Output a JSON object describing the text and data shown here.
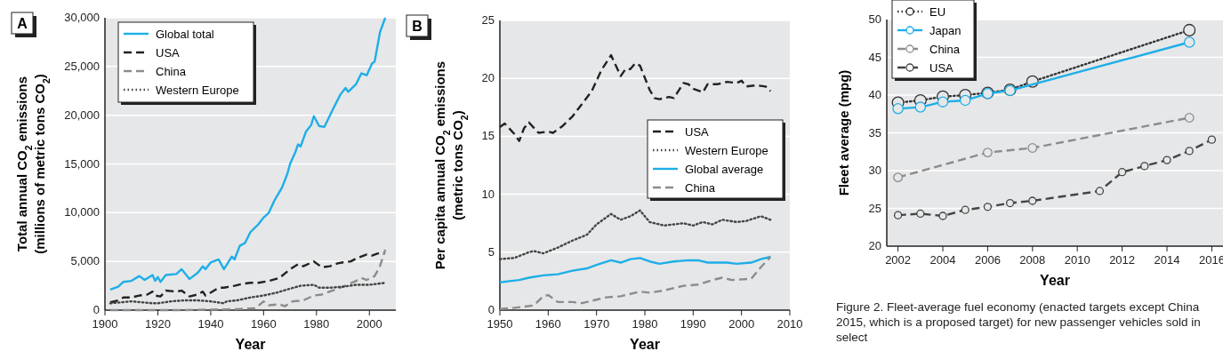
{
  "chart_data": [
    {
      "type": "line",
      "title": "A",
      "xlabel": "Year",
      "ylabel": "Total annual CO$_{2}$ emissions (millions of metric tons CO$_{2}$)",
      "xlim": [
        1900,
        2010
      ],
      "xticks": [
        1900,
        1920,
        1940,
        1960,
        1980,
        2000
      ],
      "ylim": [
        0,
        30000
      ],
      "yticks": [
        0,
        {
          "value": 5000,
          "label": "5,000"
        },
        {
          "value": 10000,
          "label": "10,000"
        },
        {
          "value": 15000,
          "label": "15,000"
        },
        {
          "value": 20000,
          "label": "20,000"
        },
        {
          "value": 25000,
          "label": "25,000"
        },
        {
          "value": 30000,
          "label": "30,000"
        }
      ],
      "grid": "y",
      "legend": "top left",
      "series": [
        {
          "name": "Global total",
          "color": "#1eaee8",
          "line_style": "solid",
          "x": [
            1902,
            1905,
            1907,
            1910,
            1913,
            1915,
            1918,
            1919,
            1920,
            1921,
            1923,
            1927,
            1929,
            1932,
            1935,
            1937,
            1938,
            1940,
            1943,
            1945,
            1948,
            1949,
            1951,
            1953,
            1955,
            1958,
            1960,
            1962,
            1964,
            1967,
            1969,
            1970,
            1972,
            1973,
            1974,
            1976,
            1978,
            1979,
            1981,
            1983,
            1986,
            1989,
            1991,
            1992,
            1995,
            1997,
            1999,
            2001,
            2002,
            2004,
            2006
          ],
          "values": [
            2100,
            2400,
            2900,
            3000,
            3500,
            3100,
            3600,
            3000,
            3400,
            2900,
            3600,
            3700,
            4200,
            3200,
            3800,
            4500,
            4200,
            4900,
            5200,
            4200,
            5500,
            5200,
            6600,
            6900,
            8000,
            8800,
            9500,
            10000,
            11200,
            12600,
            14000,
            15000,
            16200,
            17000,
            16800,
            18300,
            19000,
            19900,
            18900,
            18800,
            20500,
            22100,
            22800,
            22400,
            23200,
            24300,
            24100,
            25300,
            25500,
            28500,
            30000
          ]
        },
        {
          "name": "USA",
          "color": "#222222",
          "line_style": "dashed",
          "x": [
            1902,
            1905,
            1907,
            1910,
            1913,
            1916,
            1918,
            1919,
            1921,
            1923,
            1927,
            1929,
            1932,
            1935,
            1937,
            1938,
            1940,
            1943,
            1945,
            1949,
            1952,
            1955,
            1958,
            1962,
            1966,
            1970,
            1973,
            1975,
            1979,
            1982,
            1985,
            1988,
            1990,
            1993,
            1995,
            1997,
            1999,
            2001,
            2003,
            2006
          ],
          "values": [
            800,
            1000,
            1300,
            1300,
            1500,
            1600,
            1900,
            1500,
            1400,
            2000,
            1900,
            2000,
            1400,
            1600,
            1900,
            1500,
            1800,
            2300,
            2300,
            2500,
            2700,
            2800,
            2800,
            3000,
            3300,
            4200,
            4700,
            4500,
            5000,
            4400,
            4500,
            4800,
            4900,
            5000,
            5300,
            5500,
            5700,
            5600,
            5800,
            5900
          ]
        },
        {
          "name": "China",
          "color": "#8c8c8c",
          "line_style": "dashed",
          "x": [
            1902,
            1930,
            1950,
            1957,
            1960,
            1962,
            1966,
            1968,
            1971,
            1975,
            1979,
            1982,
            1985,
            1990,
            1995,
            1997,
            1999,
            2002,
            2004,
            2006
          ],
          "values": [
            0,
            0,
            100,
            200,
            900,
            500,
            600,
            400,
            900,
            1000,
            1500,
            1600,
            1900,
            2400,
            3000,
            3300,
            3100,
            3500,
            4500,
            6200
          ]
        },
        {
          "name": "Western Europe",
          "color": "#444444",
          "line_style": "dotted",
          "x": [
            1902,
            1910,
            1918,
            1920,
            1925,
            1930,
            1935,
            1940,
            1945,
            1946,
            1950,
            1955,
            1960,
            1965,
            1970,
            1974,
            1979,
            1981,
            1985,
            1990,
            1995,
            2000,
            2006
          ],
          "values": [
            700,
            900,
            700,
            700,
            900,
            1000,
            1000,
            900,
            700,
            900,
            1000,
            1300,
            1500,
            1800,
            2200,
            2500,
            2600,
            2300,
            2300,
            2400,
            2600,
            2600,
            2800
          ]
        }
      ]
    },
    {
      "type": "line",
      "title": "B",
      "xlabel": "Year",
      "ylabel": "Per capita annual CO$_{2}$ emissions (metric tons CO$_{2}$)",
      "xlim": [
        1950,
        2010
      ],
      "xticks": [
        1950,
        1960,
        1970,
        1980,
        1990,
        2000,
        2010
      ],
      "ylim": [
        0,
        25
      ],
      "yticks": [
        0,
        5,
        10,
        15,
        20,
        25
      ],
      "grid": "y",
      "legend": "right",
      "series": [
        {
          "name": "USA",
          "color": "#222222",
          "line_style": "dashed",
          "x": [
            1950,
            1951,
            1953,
            1954,
            1955,
            1956,
            1958,
            1960,
            1961,
            1963,
            1965,
            1967,
            1969,
            1971,
            1973,
            1975,
            1976,
            1977,
            1978,
            1979,
            1981,
            1982,
            1983,
            1985,
            1986,
            1988,
            1989,
            1990,
            1992,
            1993,
            1995,
            1997,
            1999,
            2000,
            2001,
            2003,
            2005,
            2006
          ],
          "values": [
            15.8,
            16.1,
            15.2,
            14.6,
            15.7,
            16.2,
            15.3,
            15.4,
            15.3,
            15.9,
            16.7,
            17.8,
            18.9,
            20.7,
            22.0,
            20.2,
            20.8,
            20.8,
            21.3,
            21.1,
            19.0,
            18.3,
            18.2,
            18.4,
            18.3,
            19.6,
            19.5,
            19.1,
            18.8,
            19.5,
            19.5,
            19.7,
            19.6,
            19.8,
            19.3,
            19.4,
            19.3,
            18.9
          ]
        },
        {
          "name": "Western Europe",
          "color": "#444444",
          "line_style": "dotted",
          "x": [
            1950,
            1953,
            1956,
            1957,
            1959,
            1962,
            1965,
            1968,
            1970,
            1973,
            1975,
            1977,
            1979,
            1981,
            1984,
            1988,
            1990,
            1992,
            1994,
            1996,
            1999,
            2001,
            2004,
            2006
          ],
          "values": [
            4.4,
            4.5,
            5.0,
            5.1,
            4.9,
            5.4,
            6.0,
            6.5,
            7.4,
            8.3,
            7.8,
            8.1,
            8.6,
            7.6,
            7.3,
            7.5,
            7.3,
            7.6,
            7.4,
            7.8,
            7.6,
            7.7,
            8.1,
            7.8
          ]
        },
        {
          "name": "Global average",
          "color": "#1eaee8",
          "line_style": "solid",
          "x": [
            1950,
            1952,
            1954,
            1956,
            1959,
            1962,
            1965,
            1968,
            1970,
            1973,
            1975,
            1977,
            1979,
            1981,
            1983,
            1986,
            1989,
            1991,
            1993,
            1997,
            1999,
            2002,
            2004,
            2006
          ],
          "values": [
            2.4,
            2.5,
            2.6,
            2.8,
            3.0,
            3.1,
            3.4,
            3.6,
            3.9,
            4.3,
            4.1,
            4.4,
            4.5,
            4.2,
            4.0,
            4.2,
            4.3,
            4.3,
            4.1,
            4.1,
            4.0,
            4.1,
            4.4,
            4.6
          ]
        },
        {
          "name": "China",
          "color": "#8c8c8c",
          "line_style": "dashed",
          "x": [
            1950,
            1953,
            1957,
            1959,
            1960,
            1962,
            1965,
            1967,
            1970,
            1972,
            1975,
            1979,
            1981,
            1984,
            1988,
            1991,
            1994,
            1996,
            1998,
            2002,
            2004,
            2006
          ],
          "values": [
            0.1,
            0.2,
            0.4,
            1.2,
            1.3,
            0.7,
            0.7,
            0.6,
            0.9,
            1.1,
            1.2,
            1.6,
            1.5,
            1.7,
            2.1,
            2.2,
            2.6,
            2.8,
            2.6,
            2.7,
            3.7,
            4.6
          ]
        }
      ]
    },
    {
      "type": "line",
      "xlabel": "Year",
      "ylabel": "Fleet average (mpg)",
      "xlim": [
        2001.5,
        2016.5
      ],
      "xticks": [
        2002,
        2004,
        2006,
        2008,
        2010,
        2012,
        2014,
        2016
      ],
      "ylim": [
        20,
        50
      ],
      "yticks": [
        20,
        25,
        30,
        35,
        40,
        45,
        50
      ],
      "grid": "y",
      "legend": "top left",
      "marker": "circle",
      "annotations": [
        "Figure 2. Fleet-average fuel economy (enacted targets except China 2015, which is a proposed target) for new passenger vehicles sold in select"
      ],
      "series": [
        {
          "name": "EU",
          "color": "#333333",
          "line_style": "dotted",
          "x": [
            2002,
            2003,
            2004,
            2005,
            2006,
            2007,
            2008,
            2015
          ],
          "values": [
            39.0,
            39.3,
            39.8,
            40.0,
            40.3,
            40.7,
            41.8,
            48.6
          ]
        },
        {
          "name": "Japan",
          "color": "#1eaee8",
          "line_style": "solid",
          "x": [
            2002,
            2003,
            2004,
            2005,
            2006,
            2007,
            2015
          ],
          "values": [
            38.2,
            38.4,
            39.1,
            39.3,
            40.2,
            40.6,
            47.0
          ]
        },
        {
          "name": "China",
          "color": "#8c8c8c",
          "line_style": "dashed",
          "x": [
            2002,
            2006,
            2008,
            2015
          ],
          "values": [
            29.1,
            32.4,
            33.0,
            37.0
          ]
        },
        {
          "name": "USA",
          "color": "#444444",
          "line_style": "dashed",
          "x": [
            2002,
            2003,
            2004,
            2005,
            2006,
            2007,
            2008,
            2011,
            2012,
            2013,
            2014,
            2015,
            2016
          ],
          "values": [
            24.1,
            24.3,
            24.0,
            24.8,
            25.2,
            25.7,
            26.0,
            27.3,
            29.8,
            30.6,
            31.4,
            32.6,
            34.1
          ]
        }
      ]
    }
  ]
}
